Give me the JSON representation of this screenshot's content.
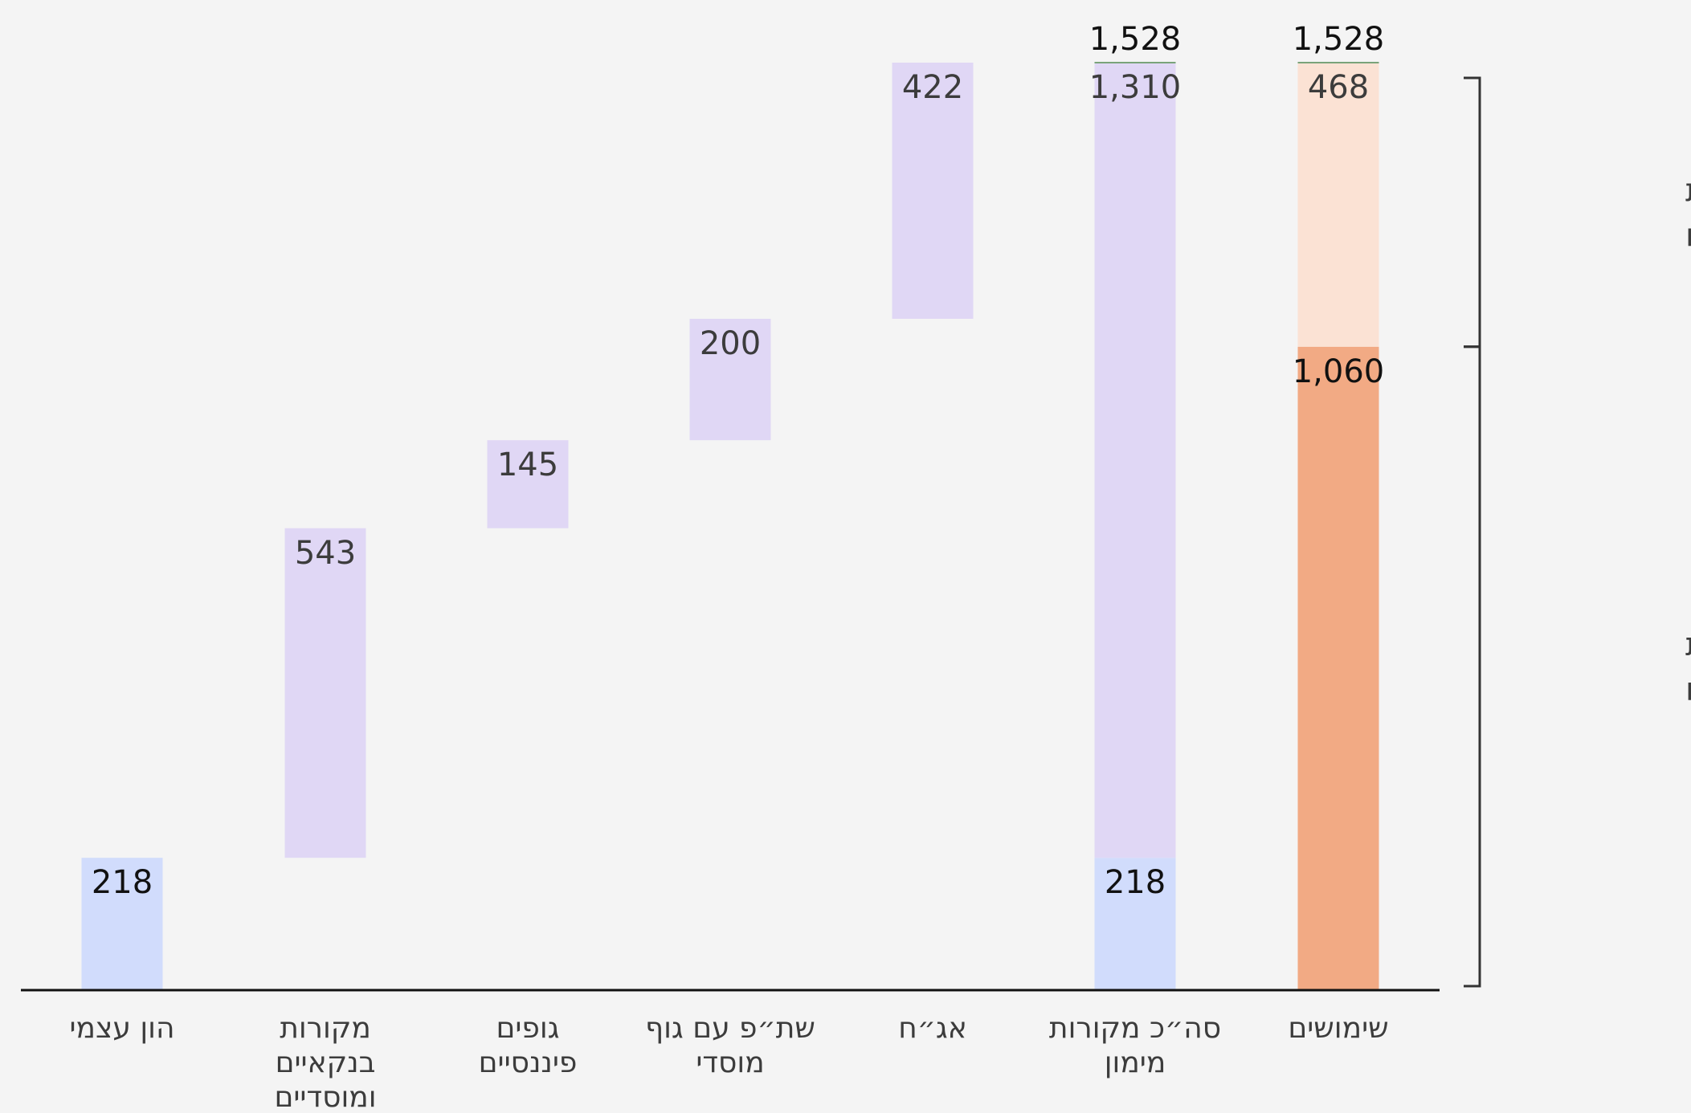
{
  "chart_data": {
    "type": "bar",
    "subtype": "waterfall",
    "title": "",
    "xlabel": "",
    "ylabel": "",
    "ylim": [
      0,
      1528
    ],
    "grid": false,
    "legend": "none",
    "categories": [
      [
        "הון עצמי"
      ],
      [
        "מקורות",
        "בנקאיים",
        "ומוסדיים"
      ],
      [
        "גופים",
        "פיננסיים"
      ],
      [
        "שת״פ עם גוף",
        "מוסדי"
      ],
      [
        "אג״ח"
      ],
      [
        "סה״כ מקורות",
        "מימון"
      ],
      [
        "שימושים"
      ]
    ],
    "segments": [
      {
        "category": 0,
        "start": 0,
        "value": 218,
        "label": "218",
        "color": "#d1dcfc"
      },
      {
        "category": 1,
        "start": 218,
        "value": 543,
        "label": "543",
        "color": "#e0d7f5"
      },
      {
        "category": 2,
        "start": 761,
        "value": 145,
        "label": "145",
        "color": "#e0d7f5"
      },
      {
        "category": 3,
        "start": 906,
        "value": 200,
        "label": "200",
        "color": "#e0d7f5"
      },
      {
        "category": 4,
        "start": 1106,
        "value": 422,
        "label": "422",
        "color": "#e0d7f5"
      },
      {
        "category": 5,
        "start": 0,
        "value": 218,
        "label": "218",
        "color": "#d1dcfc"
      },
      {
        "category": 5,
        "start": 218,
        "value": 1310,
        "label": "1,310",
        "color": "#e0d7f5"
      },
      {
        "category": 6,
        "start": 0,
        "value": 1060,
        "label": "1,060",
        "color": "#f2aa84"
      },
      {
        "category": 6,
        "start": 1060,
        "value": 468,
        "label": "468",
        "color": "#fbe2d4"
      }
    ],
    "totals": [
      {
        "category": 5,
        "value": 1528,
        "label": "1,528"
      },
      {
        "category": 6,
        "value": 1528,
        "label": "1,528"
      }
    ],
    "brackets": [
      {
        "from": 1060,
        "to": 1528,
        "lines": [
          "מקורות",
          "פנויים"
        ]
      },
      {
        "from": 0,
        "to": 1060,
        "lines": [
          "מקורות",
          "מנוצלים"
        ]
      }
    ],
    "colors": {
      "equity": "#d1dcfc",
      "sources": "#e0d7f5",
      "utilized": "#f2aa84",
      "available": "#fbe2d4",
      "total_line": "#7aa37a",
      "axis": "#111111"
    }
  }
}
